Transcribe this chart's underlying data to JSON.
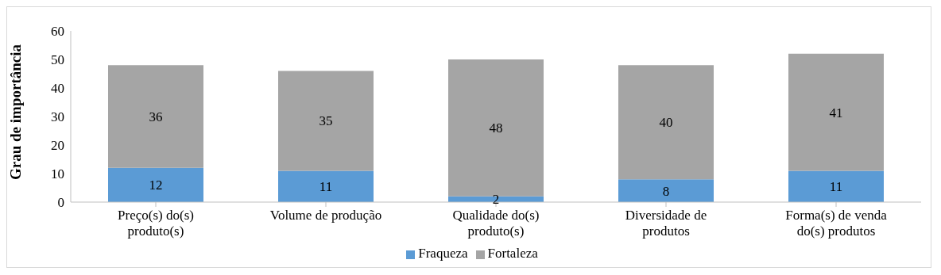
{
  "chart_data": {
    "type": "bar",
    "stacked": true,
    "ylabel": "Grau de importância",
    "categories": [
      "Preço(s) do(s) produto(s)",
      "Volume de produção",
      "Qualidade do(s) produto(s)",
      "Diversidade de produtos",
      "Forma(s) de venda do(s) produtos"
    ],
    "series": [
      {
        "name": "Fraqueza",
        "color": "#5b9bd5",
        "values": [
          12,
          11,
          2,
          8,
          11
        ]
      },
      {
        "name": "Fortaleza",
        "color": "#a5a5a5",
        "values": [
          36,
          35,
          48,
          40,
          41
        ]
      }
    ],
    "ylim": [
      0,
      60
    ],
    "yticks": [
      0,
      10,
      20,
      30,
      40,
      50,
      60
    ],
    "data_labels": true,
    "grid": false,
    "legend": "bottom"
  }
}
